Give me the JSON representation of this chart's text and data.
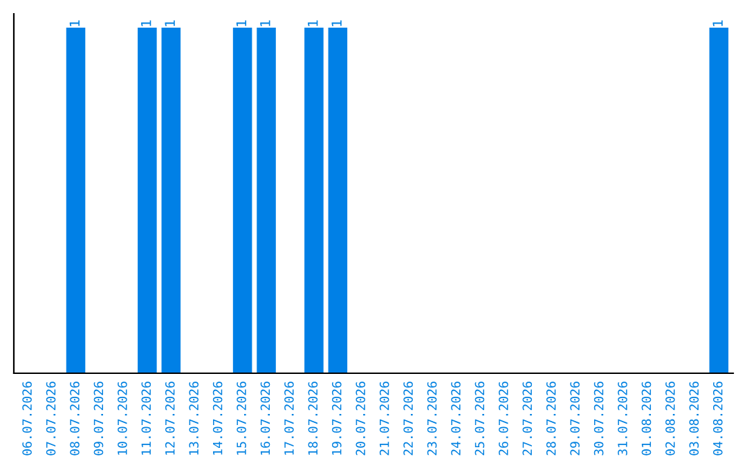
{
  "chart_data": {
    "type": "bar",
    "categories": [
      "06.07.2026",
      "07.07.2026",
      "08.07.2026",
      "09.07.2026",
      "10.07.2026",
      "11.07.2026",
      "12.07.2026",
      "13.07.2026",
      "14.07.2026",
      "15.07.2026",
      "16.07.2026",
      "17.07.2026",
      "18.07.2026",
      "19.07.2026",
      "20.07.2026",
      "21.07.2026",
      "22.07.2026",
      "23.07.2026",
      "24.07.2026",
      "25.07.2026",
      "26.07.2026",
      "27.07.2026",
      "28.07.2026",
      "29.07.2026",
      "30.07.2026",
      "31.07.2026",
      "01.08.2026",
      "02.08.2026",
      "03.08.2026",
      "04.08.2026"
    ],
    "values": [
      0,
      0,
      1,
      0,
      0,
      1,
      1,
      0,
      0,
      1,
      1,
      0,
      1,
      1,
      0,
      0,
      0,
      0,
      0,
      0,
      0,
      0,
      0,
      0,
      0,
      0,
      0,
      0,
      0,
      1
    ],
    "value_labels": [
      null,
      null,
      "1",
      null,
      null,
      "1",
      "1",
      null,
      null,
      "1",
      "1",
      null,
      "1",
      "1",
      null,
      null,
      null,
      null,
      null,
      null,
      null,
      null,
      null,
      null,
      null,
      null,
      null,
      null,
      null,
      "1"
    ],
    "color": "#0080e6"
  }
}
